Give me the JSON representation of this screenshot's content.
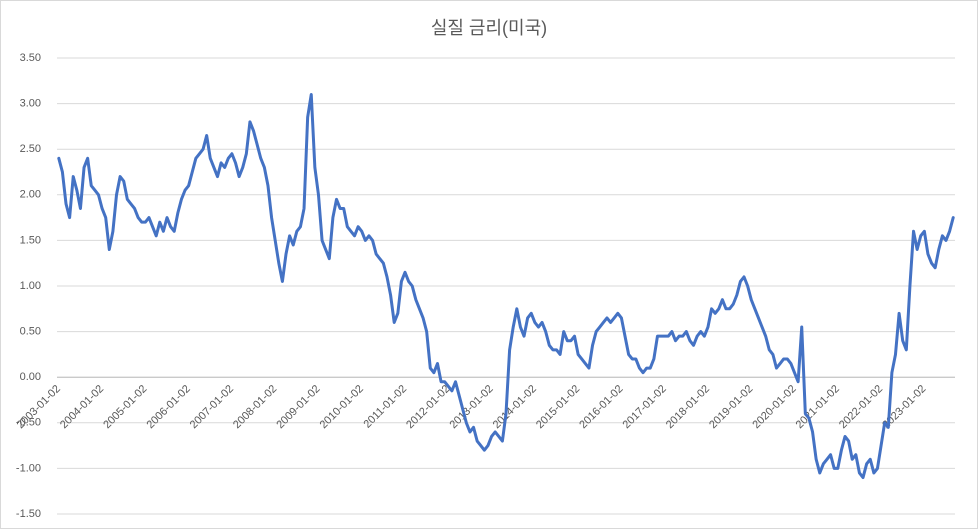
{
  "chart_data": {
    "type": "line",
    "title": "실질 금리(미국)",
    "categories": [
      "2003-01-02",
      null,
      null,
      null,
      null,
      null,
      null,
      null,
      null,
      null,
      null,
      null,
      "2004-01-02",
      null,
      null,
      null,
      null,
      null,
      null,
      null,
      null,
      null,
      null,
      null,
      "2005-01-02",
      null,
      null,
      null,
      null,
      null,
      null,
      null,
      null,
      null,
      null,
      null,
      "2006-01-02",
      null,
      null,
      null,
      null,
      null,
      null,
      null,
      null,
      null,
      null,
      null,
      "2007-01-02",
      null,
      null,
      null,
      null,
      null,
      null,
      null,
      null,
      null,
      null,
      null,
      "2008-01-02",
      null,
      null,
      null,
      null,
      null,
      null,
      null,
      null,
      null,
      null,
      null,
      "2009-01-02",
      null,
      null,
      null,
      null,
      null,
      null,
      null,
      null,
      null,
      null,
      null,
      "2010-01-02",
      null,
      null,
      null,
      null,
      null,
      null,
      null,
      null,
      null,
      null,
      null,
      "2011-01-02",
      null,
      null,
      null,
      null,
      null,
      null,
      null,
      null,
      null,
      null,
      null,
      "2012-01-02",
      null,
      null,
      null,
      null,
      null,
      null,
      null,
      null,
      null,
      null,
      null,
      "2013-01-02",
      null,
      null,
      null,
      null,
      null,
      null,
      null,
      null,
      null,
      null,
      null,
      "2014-01-02",
      null,
      null,
      null,
      null,
      null,
      null,
      null,
      null,
      null,
      null,
      null,
      "2015-01-02",
      null,
      null,
      null,
      null,
      null,
      null,
      null,
      null,
      null,
      null,
      null,
      "2016-01-02",
      null,
      null,
      null,
      null,
      null,
      null,
      null,
      null,
      null,
      null,
      null,
      "2017-01-02",
      null,
      null,
      null,
      null,
      null,
      null,
      null,
      null,
      null,
      null,
      null,
      "2018-01-02",
      null,
      null,
      null,
      null,
      null,
      null,
      null,
      null,
      null,
      null,
      null,
      "2019-01-02",
      null,
      null,
      null,
      null,
      null,
      null,
      null,
      null,
      null,
      null,
      null,
      "2020-01-02",
      null,
      null,
      null,
      null,
      null,
      null,
      null,
      null,
      null,
      null,
      null,
      "2021-01-02",
      null,
      null,
      null,
      null,
      null,
      null,
      null,
      null,
      null,
      null,
      null,
      "2022-01-02",
      null,
      null,
      null,
      null,
      null,
      null,
      null,
      null,
      null,
      null,
      null,
      "2023-01-02",
      null,
      null,
      null,
      null,
      null,
      null,
      null,
      null
    ],
    "series": [
      {
        "color": "#4472c4",
        "values": [
          2.4,
          2.25,
          1.9,
          1.75,
          2.2,
          2.05,
          1.85,
          2.3,
          2.4,
          2.1,
          2.05,
          2.0,
          1.85,
          1.75,
          1.4,
          1.6,
          2.0,
          2.2,
          2.15,
          1.95,
          1.9,
          1.85,
          1.75,
          1.7,
          1.7,
          1.75,
          1.65,
          1.55,
          1.7,
          1.6,
          1.75,
          1.65,
          1.6,
          1.8,
          1.95,
          2.05,
          2.1,
          2.25,
          2.4,
          2.45,
          2.5,
          2.65,
          2.4,
          2.3,
          2.2,
          2.35,
          2.3,
          2.4,
          2.45,
          2.35,
          2.2,
          2.3,
          2.45,
          2.8,
          2.7,
          2.55,
          2.4,
          2.3,
          2.1,
          1.75,
          1.5,
          1.25,
          1.05,
          1.35,
          1.55,
          1.45,
          1.6,
          1.65,
          1.85,
          2.85,
          3.1,
          2.3,
          2.0,
          1.5,
          1.4,
          1.3,
          1.75,
          1.95,
          1.85,
          1.85,
          1.65,
          1.6,
          1.55,
          1.65,
          1.6,
          1.5,
          1.55,
          1.5,
          1.35,
          1.3,
          1.25,
          1.1,
          0.9,
          0.6,
          0.7,
          1.05,
          1.15,
          1.05,
          1.0,
          0.85,
          0.75,
          0.65,
          0.5,
          0.1,
          0.05,
          0.15,
          -0.05,
          -0.05,
          -0.1,
          -0.15,
          -0.05,
          -0.2,
          -0.35,
          -0.5,
          -0.6,
          -0.55,
          -0.7,
          -0.75,
          -0.8,
          -0.75,
          -0.65,
          -0.6,
          -0.65,
          -0.7,
          -0.4,
          0.3,
          0.55,
          0.75,
          0.55,
          0.45,
          0.65,
          0.7,
          0.6,
          0.55,
          0.6,
          0.5,
          0.35,
          0.3,
          0.3,
          0.25,
          0.5,
          0.4,
          0.4,
          0.45,
          0.25,
          0.2,
          0.15,
          0.1,
          0.35,
          0.5,
          0.55,
          0.6,
          0.65,
          0.6,
          0.65,
          0.7,
          0.65,
          0.45,
          0.25,
          0.2,
          0.2,
          0.1,
          0.05,
          0.1,
          0.1,
          0.2,
          0.45,
          0.45,
          0.45,
          0.45,
          0.5,
          0.4,
          0.45,
          0.45,
          0.5,
          0.4,
          0.35,
          0.45,
          0.5,
          0.45,
          0.55,
          0.75,
          0.7,
          0.75,
          0.85,
          0.75,
          0.75,
          0.8,
          0.9,
          1.05,
          1.1,
          1.0,
          0.85,
          0.75,
          0.65,
          0.55,
          0.45,
          0.3,
          0.25,
          0.1,
          0.15,
          0.2,
          0.2,
          0.15,
          0.05,
          -0.05,
          0.55,
          -0.4,
          -0.45,
          -0.6,
          -0.9,
          -1.05,
          -0.95,
          -0.9,
          -0.85,
          -1.0,
          -1.0,
          -0.8,
          -0.65,
          -0.7,
          -0.9,
          -0.85,
          -1.05,
          -1.1,
          -0.95,
          -0.9,
          -1.05,
          -1.0,
          -0.75,
          -0.5,
          -0.55,
          0.05,
          0.25,
          0.7,
          0.4,
          0.3,
          1.0,
          1.6,
          1.4,
          1.55,
          1.6,
          1.35,
          1.25,
          1.2,
          1.4,
          1.55,
          1.5,
          1.6,
          1.75
        ]
      }
    ],
    "ylim": [
      -1.5,
      3.5
    ],
    "yticks": [
      {
        "value": -1.5,
        "label": "-1.50"
      },
      {
        "value": -1,
        "label": "-1.00"
      },
      {
        "value": -0.5,
        "label": "-0.50"
      },
      {
        "value": 0,
        "label": "0.00"
      },
      {
        "value": 0.5,
        "label": "0.50"
      },
      {
        "value": 1,
        "label": "1.00"
      },
      {
        "value": 1.5,
        "label": "1.50"
      },
      {
        "value": 2,
        "label": "2.00"
      },
      {
        "value": 2.5,
        "label": "2.50"
      },
      {
        "value": 3,
        "label": "3.00"
      },
      {
        "value": 3.5,
        "label": "3.50"
      }
    ],
    "grid": true
  }
}
